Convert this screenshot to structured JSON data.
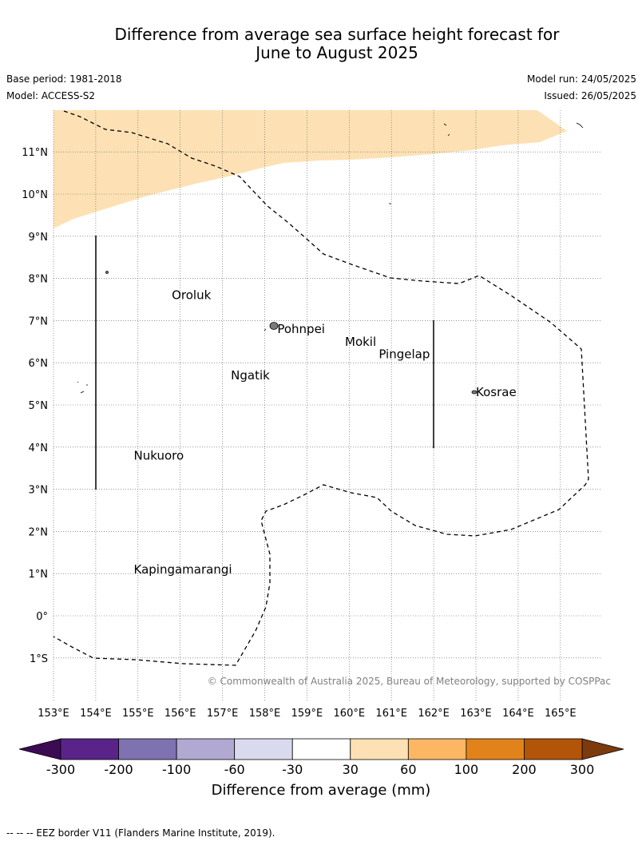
{
  "header": {
    "title_line1": "Difference from average sea surface height forecast for",
    "title_line2": "June to August 2025",
    "base_period": "Base period: 1981-2018",
    "model": "Model: ACCESS-S2",
    "model_run": "Model run: 24/05/2025",
    "issued": "Issued: 26/05/2025"
  },
  "map": {
    "lon_ticks": [
      "153°E",
      "154°E",
      "155°E",
      "156°E",
      "157°E",
      "158°E",
      "159°E",
      "160°E",
      "161°E",
      "162°E",
      "163°E",
      "164°E",
      "165°E"
    ],
    "lat_ticks": [
      "11°N",
      "10°N",
      "9°N",
      "8°N",
      "7°N",
      "6°N",
      "5°N",
      "4°N",
      "3°N",
      "2°N",
      "1°N",
      "0°",
      "1°S"
    ],
    "places": [
      {
        "name": "Oroluk",
        "lon": 155.8,
        "lat": 7.6
      },
      {
        "name": "Pohnpei",
        "lon": 158.3,
        "lat": 6.8
      },
      {
        "name": "Mokil",
        "lon": 159.9,
        "lat": 6.5
      },
      {
        "name": "Pingelap",
        "lon": 160.7,
        "lat": 6.2
      },
      {
        "name": "Ngatik",
        "lon": 157.2,
        "lat": 5.7
      },
      {
        "name": "Kosrae",
        "lon": 163.0,
        "lat": 5.3
      },
      {
        "name": "Nukuoro",
        "lon": 154.9,
        "lat": 3.8
      },
      {
        "name": "Kapingamarangi",
        "lon": 154.9,
        "lat": 1.1
      }
    ],
    "copyright": "© Commonwealth of Australia 2025, Bureau of Meteorology, supported by COSPPac",
    "anomaly_fill_color": "#fde1b4"
  },
  "colorbar": {
    "labels": [
      "-300",
      "-200",
      "-100",
      "-60",
      "-30",
      "30",
      "60",
      "100",
      "200",
      "300"
    ],
    "colors": [
      "#5a2389",
      "#7f72b0",
      "#b1a9d2",
      "#dadaee",
      "#ffffff",
      "#fde1b4",
      "#fdb764",
      "#e1831a",
      "#b25509"
    ],
    "min_color": "#3d0a54",
    "max_color": "#7b3b0d",
    "title": "Difference from average (mm)"
  },
  "footer": {
    "eez_note": "--  --  -- EEZ border V11 (Flanders Marine Institute, 2019)."
  }
}
